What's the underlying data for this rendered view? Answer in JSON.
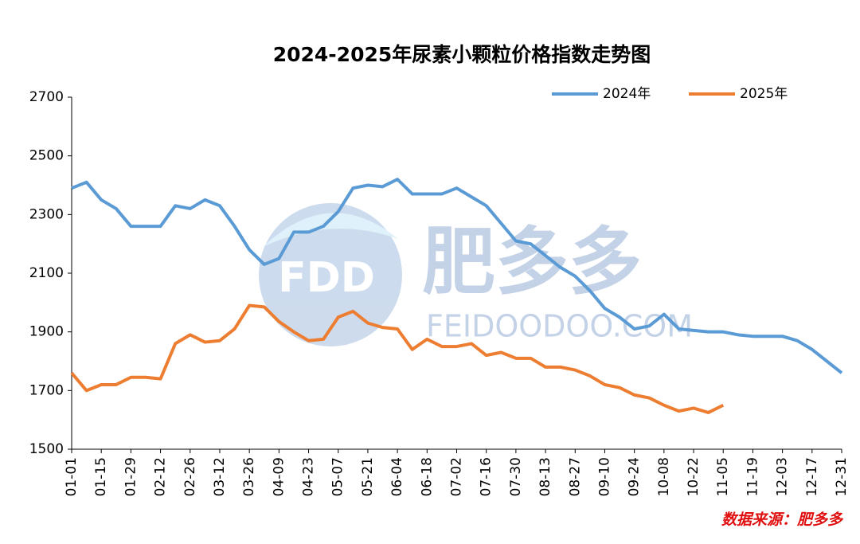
{
  "chart_data": {
    "type": "line",
    "title": "2024-2025年尿素小颗粒价格指数走势图",
    "source": "数据来源：肥多多",
    "watermark": {
      "logo": "FDD",
      "name": "肥多多",
      "site": "FEIDOODOO.COM"
    },
    "legend": "top-right",
    "grid": false,
    "categories": [
      "01-01",
      null,
      "01-15",
      null,
      "01-29",
      null,
      "02-12",
      null,
      "02-26",
      null,
      "03-12",
      null,
      "03-26",
      null,
      "04-09",
      null,
      "04-23",
      null,
      "05-07",
      null,
      "05-21",
      null,
      "06-04",
      null,
      "06-18",
      null,
      "07-02",
      null,
      "07-16",
      null,
      "07-30",
      null,
      "08-13",
      null,
      "08-27",
      null,
      "09-10",
      null,
      "09-24",
      null,
      "10-08",
      null,
      "10-22",
      null,
      "11-05",
      null,
      "11-19",
      null,
      "12-03",
      null,
      "12-17",
      null,
      "12-31"
    ],
    "ylim": [
      1500,
      2700
    ],
    "yticks": [
      1500,
      1700,
      1900,
      2100,
      2300,
      2500,
      2700
    ],
    "series": [
      {
        "name": "2024年",
        "color": "#5b9bd5",
        "values": [
          2390,
          2410,
          2350,
          2320,
          2260,
          2260,
          2260,
          2330,
          2320,
          2350,
          2330,
          2260,
          2180,
          2130,
          2150,
          2240,
          2240,
          2260,
          2310,
          2390,
          2400,
          2395,
          2420,
          2370,
          2370,
          2370,
          2390,
          2360,
          2330,
          2270,
          2210,
          2200,
          2160,
          2120,
          2090,
          2040,
          1980,
          1950,
          1910,
          1920,
          1960,
          1910,
          1905,
          1900,
          1900,
          1890,
          1885,
          1885,
          1885,
          1870,
          1840,
          1800,
          1760
        ]
      },
      {
        "name": "2025年",
        "color": "#ed7d31",
        "values": [
          1760,
          1700,
          1720,
          1720,
          1745,
          1745,
          1740,
          1860,
          1890,
          1865,
          1870,
          1910,
          1990,
          1985,
          1935,
          1900,
          1870,
          1875,
          1950,
          1970,
          1930,
          1915,
          1910,
          1840,
          1875,
          1850,
          1850,
          1860,
          1820,
          1830,
          1810,
          1810,
          1780,
          1780,
          1770,
          1750,
          1720,
          1710,
          1685,
          1675,
          1650,
          1630,
          1640,
          1625,
          1650,
          null,
          null,
          null,
          null,
          null,
          null,
          null,
          null
        ]
      }
    ]
  }
}
